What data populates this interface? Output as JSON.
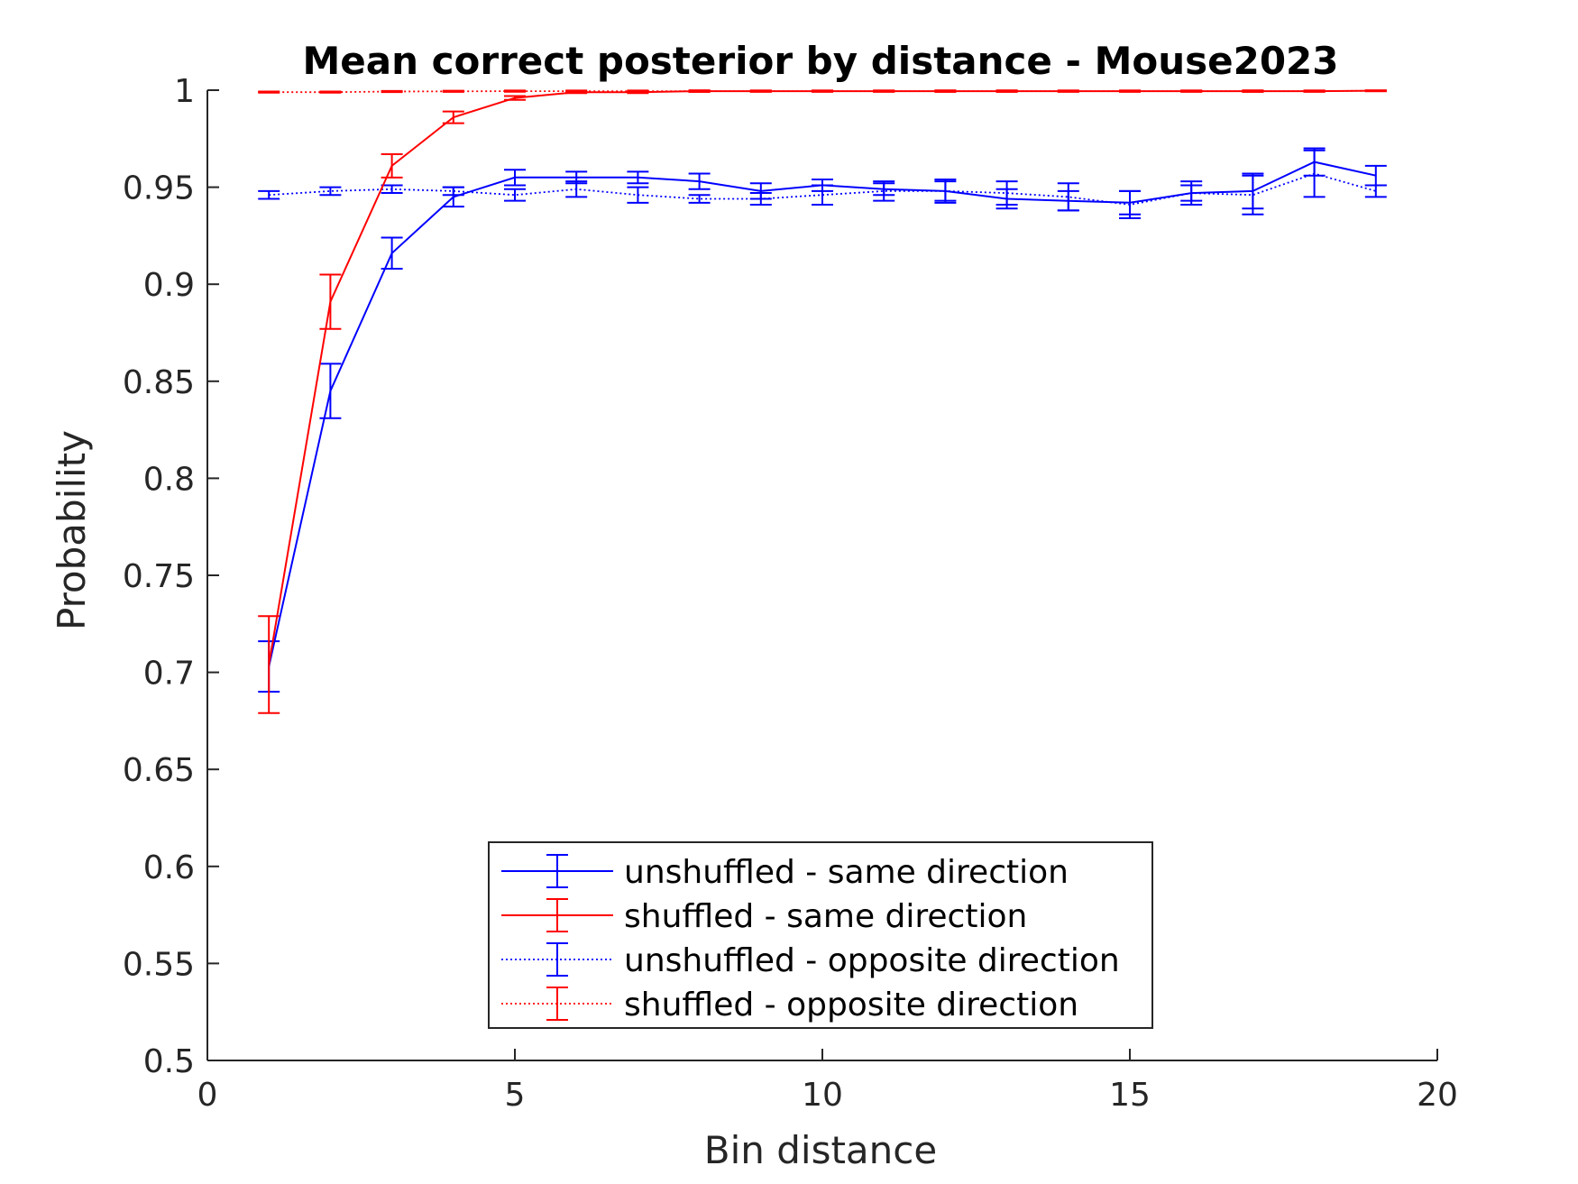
{
  "chart_data": {
    "type": "line",
    "title": "Mean correct posterior by distance - Mouse2023",
    "xlabel": "Bin distance",
    "ylabel": "Probability",
    "xlim": [
      0,
      20
    ],
    "ylim": [
      0.5,
      1
    ],
    "xticks": [
      "0",
      "5",
      "10",
      "15",
      "20"
    ],
    "yticks": [
      "0.5",
      "0.55",
      "0.6",
      "0.65",
      "0.7",
      "0.75",
      "0.8",
      "0.85",
      "0.9",
      "0.95",
      "1"
    ],
    "grid": false,
    "legend_position": "bottom-center",
    "x": [
      1,
      2,
      3,
      4,
      5,
      6,
      7,
      8,
      9,
      10,
      11,
      12,
      13,
      14,
      15,
      16,
      17,
      18,
      19
    ],
    "series": [
      {
        "name": "unshuffled - same direction",
        "color": "#0000ff",
        "style": "solid",
        "values": [
          0.703,
          0.845,
          0.916,
          0.945,
          0.955,
          0.955,
          0.955,
          0.953,
          0.948,
          0.951,
          0.949,
          0.948,
          0.944,
          0.943,
          0.942,
          0.947,
          0.948,
          0.963,
          0.956
        ],
        "errors": [
          0.013,
          0.014,
          0.008,
          0.005,
          0.004,
          0.003,
          0.003,
          0.004,
          0.004,
          0.003,
          0.003,
          0.006,
          0.005,
          0.005,
          0.006,
          0.004,
          0.009,
          0.007,
          0.005
        ]
      },
      {
        "name": "shuffled - same direction",
        "color": "#ff0000",
        "style": "solid",
        "values": [
          0.704,
          0.891,
          0.961,
          0.986,
          0.996,
          0.999,
          0.999,
          0.9995,
          0.9995,
          0.9995,
          0.9995,
          0.9995,
          0.9995,
          0.9995,
          0.9995,
          0.9995,
          0.9995,
          0.9995,
          0.9997
        ],
        "errors": [
          0.025,
          0.014,
          0.006,
          0.003,
          0.001,
          0.0005,
          0.0005,
          0.0004,
          0.0003,
          0.0003,
          0.0003,
          0.0003,
          0.0003,
          0.0003,
          0.0003,
          0.0003,
          0.0003,
          0.0003,
          0.0002
        ]
      },
      {
        "name": "unshuffled - opposite direction",
        "color": "#0000ff",
        "style": "dotted",
        "values": [
          0.946,
          0.948,
          0.949,
          0.948,
          0.946,
          0.949,
          0.946,
          0.944,
          0.944,
          0.946,
          0.948,
          0.948,
          0.947,
          0.945,
          0.941,
          0.947,
          0.946,
          0.957,
          0.948
        ],
        "errors": [
          0.002,
          0.002,
          0.002,
          0.002,
          0.003,
          0.004,
          0.004,
          0.002,
          0.003,
          0.005,
          0.005,
          0.005,
          0.006,
          0.007,
          0.007,
          0.006,
          0.01,
          0.012,
          0.003
        ]
      },
      {
        "name": "shuffled - opposite direction",
        "color": "#ff0000",
        "style": "dotted",
        "values": [
          0.999,
          0.999,
          0.9993,
          0.9994,
          0.9995,
          0.9995,
          0.9995,
          0.9995,
          0.9995,
          0.9995,
          0.9995,
          0.9995,
          0.9995,
          0.9995,
          0.9995,
          0.9995,
          0.9995,
          0.9995,
          0.9997
        ],
        "errors": [
          0.0003,
          0.0003,
          0.0003,
          0.0003,
          0.0003,
          0.0003,
          0.0003,
          0.0004,
          0.0003,
          0.0003,
          0.0003,
          0.0004,
          0.0004,
          0.0003,
          0.0003,
          0.0003,
          0.0004,
          0.0003,
          0.0002
        ]
      }
    ]
  }
}
